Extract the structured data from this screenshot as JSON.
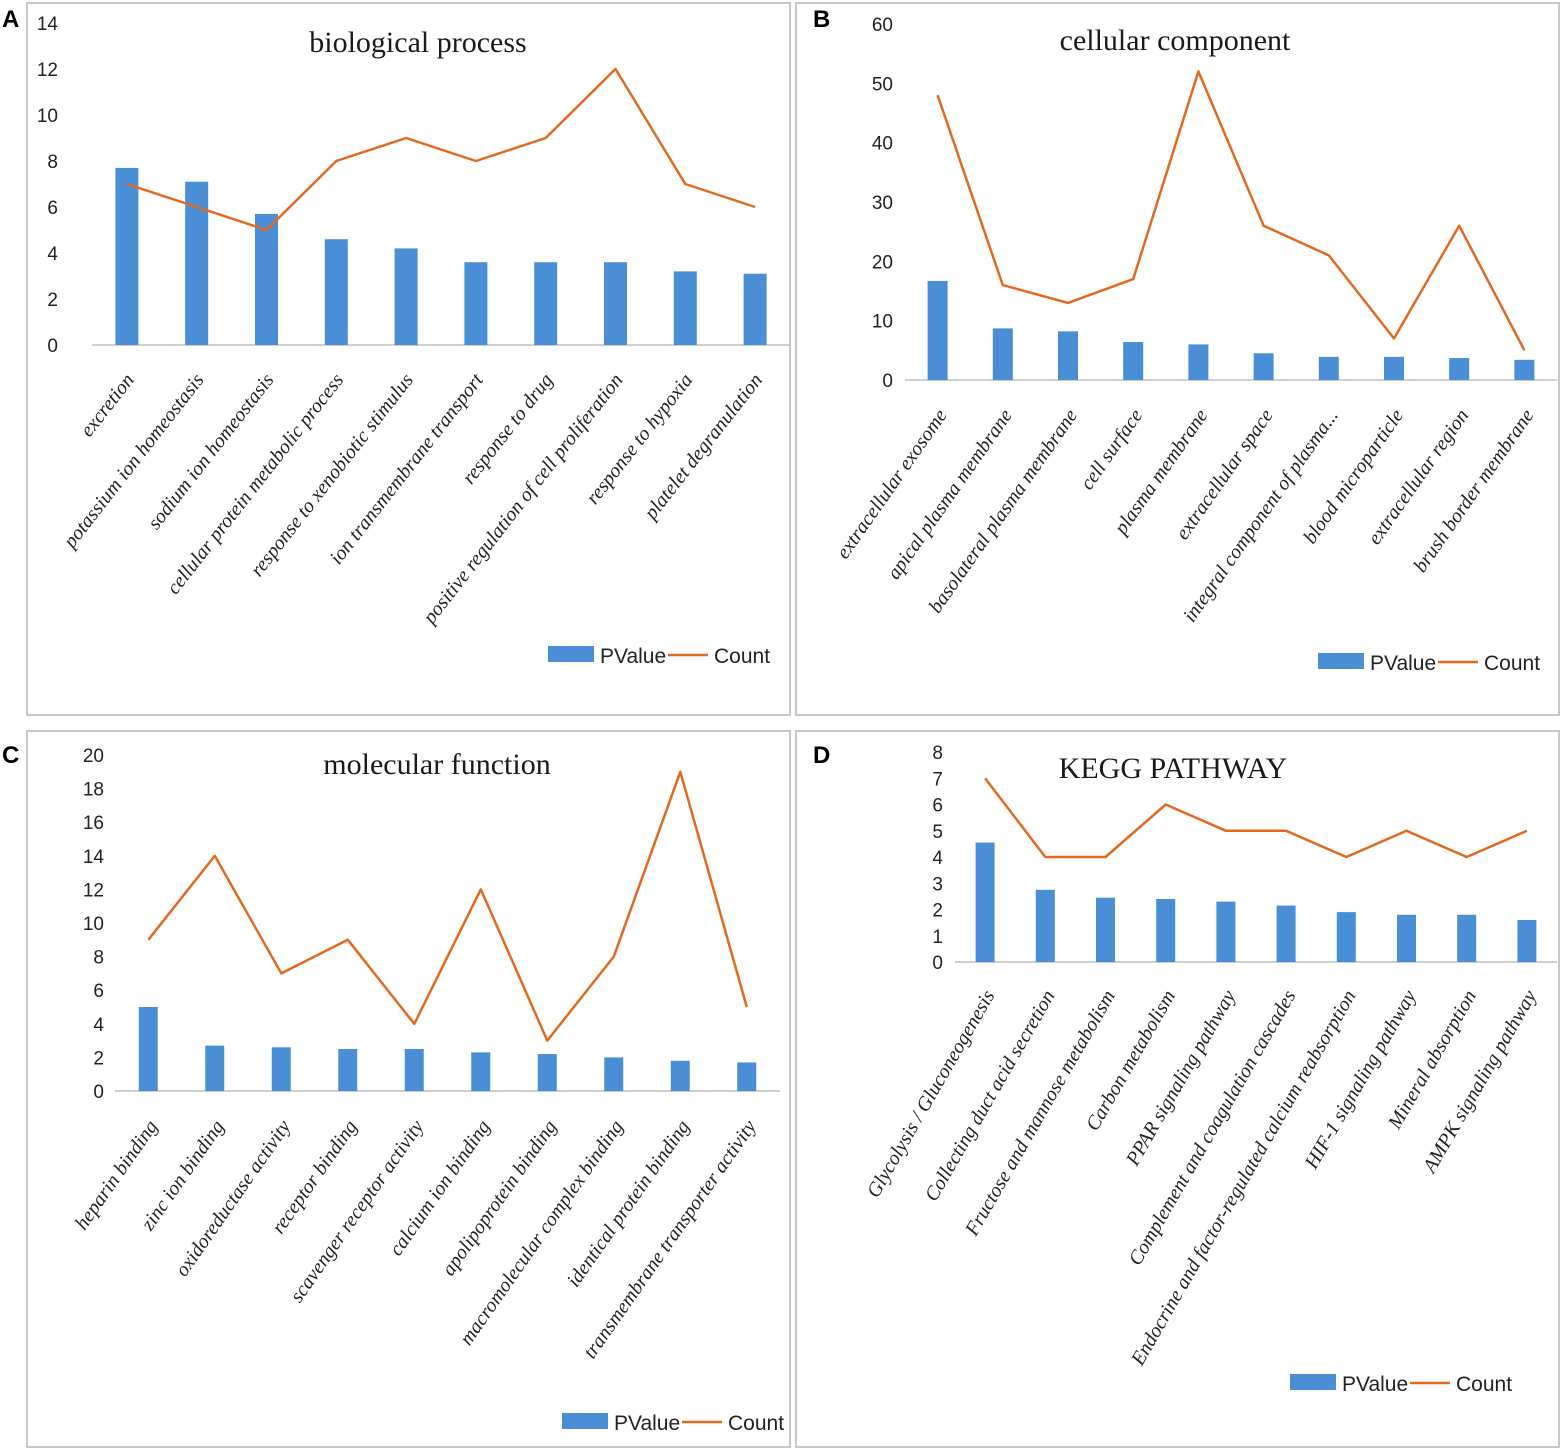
{
  "colors": {
    "bar": "#4a8fd6",
    "line": "#e2691f",
    "axis": "#bfbfbf"
  },
  "legend": {
    "bar_label": "PValue",
    "line_label": "Count"
  },
  "chart_data": [
    {
      "letter": "A",
      "type": "bar+line",
      "title": "biological process",
      "ylim": [
        0,
        14
      ],
      "yticks": [
        "0",
        "2",
        "4",
        "6",
        "8",
        "10",
        "12",
        "14"
      ],
      "categories": [
        "excretion",
        "potassium ion homeostasis",
        "sodium ion homeostasis",
        "cellular protein metabolic process",
        "response to xenobiotic stimulus",
        "ion transmembrane transport",
        "response to drug",
        "positive regulation of cell proliferation",
        "response to hypoxia",
        "platelet degranulation"
      ],
      "series": [
        {
          "name": "PValue",
          "type": "bar",
          "values": [
            7.7,
            7.1,
            5.7,
            4.6,
            4.2,
            3.6,
            3.6,
            3.6,
            3.2,
            3.1
          ]
        },
        {
          "name": "Count",
          "type": "line",
          "values": [
            7,
            6,
            5,
            8,
            9,
            8,
            9,
            12,
            7,
            6
          ]
        }
      ]
    },
    {
      "letter": "B",
      "type": "bar+line",
      "title": "cellular component",
      "ylim": [
        0,
        60
      ],
      "yticks": [
        "0",
        "10",
        "20",
        "30",
        "40",
        "50",
        "60"
      ],
      "categories": [
        "extracellular exosome",
        "apical plasma membrane",
        "basolateral plasma membrane",
        "cell surface",
        "plasma membrane",
        "extracellular space",
        "integral component of plasma...",
        "blood microparticle",
        "extracellular region",
        "brush border membrane"
      ],
      "series": [
        {
          "name": "PValue",
          "type": "bar",
          "values": [
            16.7,
            8.7,
            8.2,
            6.4,
            6.0,
            4.5,
            3.9,
            3.9,
            3.7,
            3.4
          ]
        },
        {
          "name": "Count",
          "type": "line",
          "values": [
            48,
            16,
            13,
            17,
            52,
            26,
            21,
            7,
            26,
            5
          ]
        }
      ]
    },
    {
      "letter": "C",
      "type": "bar+line",
      "title": "molecular function",
      "ylim": [
        0,
        20
      ],
      "yticks": [
        "0",
        "2",
        "4",
        "6",
        "8",
        "10",
        "12",
        "14",
        "16",
        "18",
        "20"
      ],
      "categories": [
        "heparin binding",
        "zinc ion binding",
        "oxidoreductase activity",
        "receptor binding",
        "scavenger receptor activity",
        "calcium ion binding",
        "apolipoprotein binding",
        "macromolecular complex binding",
        "identical protein binding",
        "transmembrane transporter activity"
      ],
      "series": [
        {
          "name": "PValue",
          "type": "bar",
          "values": [
            5.0,
            2.7,
            2.6,
            2.5,
            2.5,
            2.3,
            2.2,
            2.0,
            1.8,
            1.7
          ]
        },
        {
          "name": "Count",
          "type": "line",
          "values": [
            9,
            14,
            7,
            9,
            4,
            12,
            3,
            8,
            19,
            5
          ]
        }
      ]
    },
    {
      "letter": "D",
      "type": "bar+line",
      "title": "KEGG PATHWAY",
      "ylim": [
        0,
        8
      ],
      "yticks": [
        "0",
        "1",
        "2",
        "3",
        "4",
        "5",
        "6",
        "7",
        "8"
      ],
      "categories": [
        "Glycolysis / Gluconeogenesis",
        "Collecting duct acid secretion",
        "Fructose and mannose metabolism",
        "Carbon metabolism",
        "PPAR signaling pathway",
        "Complement and coagulation cascades",
        "Endocrine and factor-regulated calcium reabsorption",
        "HIF-1 signaling pathway",
        "Mineral absorption",
        "AMPK signaling pathway"
      ],
      "series": [
        {
          "name": "PValue",
          "type": "bar",
          "values": [
            4.55,
            2.75,
            2.45,
            2.4,
            2.3,
            2.15,
            1.9,
            1.8,
            1.8,
            1.6
          ]
        },
        {
          "name": "Count",
          "type": "line",
          "values": [
            7,
            4,
            4,
            6,
            5,
            5,
            4,
            5,
            4,
            5
          ]
        }
      ]
    }
  ]
}
